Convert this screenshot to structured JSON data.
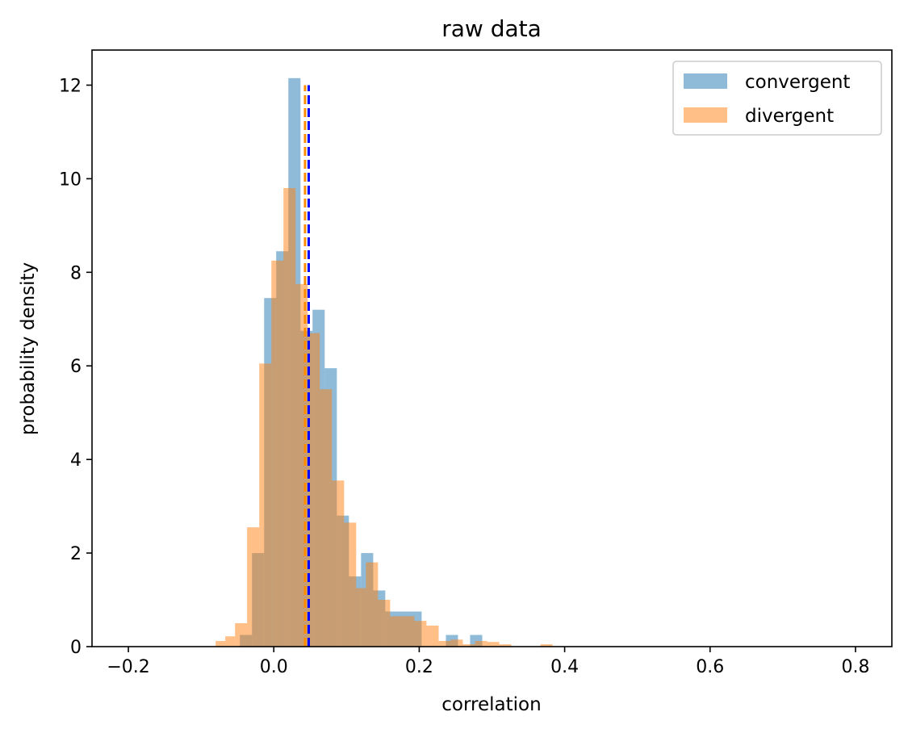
{
  "chart_data": {
    "type": "bar",
    "subtype": "histogram",
    "title": "raw data",
    "xlabel": "correlation",
    "ylabel": "probability density",
    "xlim": [
      -0.25,
      0.85
    ],
    "ylim": [
      0,
      12.75
    ],
    "xticks": [
      -0.2,
      0.0,
      0.2,
      0.4,
      0.6,
      0.8
    ],
    "xtick_labels": [
      "−0.2",
      "0.0",
      "0.2",
      "0.4",
      "0.6",
      "0.8"
    ],
    "yticks": [
      0,
      2,
      4,
      6,
      8,
      10,
      12
    ],
    "ytick_labels": [
      "0",
      "2",
      "4",
      "6",
      "8",
      "10",
      "12"
    ],
    "legend_position": "upper-right",
    "series": [
      {
        "name": "convergent",
        "color": "#1f77b4",
        "alpha": 0.5,
        "bins": [
          [
            -0.0467,
            -0.03,
            0.25
          ],
          [
            -0.03,
            -0.0133,
            2.0
          ],
          [
            -0.0133,
            0.0033,
            7.45
          ],
          [
            0.0033,
            0.02,
            8.45
          ],
          [
            0.02,
            0.0367,
            12.15
          ],
          [
            0.0367,
            0.0533,
            6.75
          ],
          [
            0.0533,
            0.07,
            7.2
          ],
          [
            0.07,
            0.0867,
            5.95
          ],
          [
            0.0867,
            0.1033,
            2.8
          ],
          [
            0.1033,
            0.12,
            1.5
          ],
          [
            0.12,
            0.1367,
            2.0
          ],
          [
            0.1367,
            0.1533,
            1.2
          ],
          [
            0.1533,
            0.17,
            0.75
          ],
          [
            0.17,
            0.1867,
            0.75
          ],
          [
            0.1867,
            0.2033,
            0.75
          ],
          [
            0.2367,
            0.2533,
            0.25
          ],
          [
            0.27,
            0.2867,
            0.25
          ]
        ],
        "mean": 0.048
      },
      {
        "name": "divergent",
        "color": "#ff7f0e",
        "alpha": 0.5,
        "bins": [
          [
            -0.08,
            -0.0667,
            0.12
          ],
          [
            -0.0667,
            -0.0533,
            0.22
          ],
          [
            -0.0533,
            -0.0367,
            0.5
          ],
          [
            -0.0367,
            -0.02,
            2.55
          ],
          [
            -0.02,
            -0.0033,
            6.05
          ],
          [
            -0.0033,
            0.0133,
            8.25
          ],
          [
            0.0133,
            0.03,
            9.8
          ],
          [
            0.03,
            0.0467,
            7.75
          ],
          [
            0.0467,
            0.0633,
            6.7
          ],
          [
            0.0633,
            0.08,
            5.5
          ],
          [
            0.08,
            0.0967,
            3.55
          ],
          [
            0.0967,
            0.1133,
            2.65
          ],
          [
            0.1133,
            0.1267,
            1.25
          ],
          [
            0.1267,
            0.1433,
            1.8
          ],
          [
            0.1433,
            0.16,
            1.0
          ],
          [
            0.16,
            0.1767,
            0.65
          ],
          [
            0.1767,
            0.1933,
            0.65
          ],
          [
            0.1933,
            0.21,
            0.55
          ],
          [
            0.21,
            0.2267,
            0.45
          ],
          [
            0.2267,
            0.2433,
            0.12
          ],
          [
            0.2433,
            0.26,
            0.15
          ],
          [
            0.26,
            0.2767,
            0.05
          ],
          [
            0.2767,
            0.2933,
            0.12
          ],
          [
            0.2933,
            0.31,
            0.1
          ],
          [
            0.31,
            0.3267,
            0.05
          ],
          [
            0.3667,
            0.3833,
            0.05
          ]
        ],
        "mean": 0.043
      }
    ],
    "mean_lines": [
      {
        "series": "divergent",
        "x": 0.043,
        "color": "#ff8c00",
        "style": "dashed"
      },
      {
        "series": "convergent",
        "x": 0.048,
        "color": "#0000ff",
        "style": "dashed"
      }
    ]
  }
}
